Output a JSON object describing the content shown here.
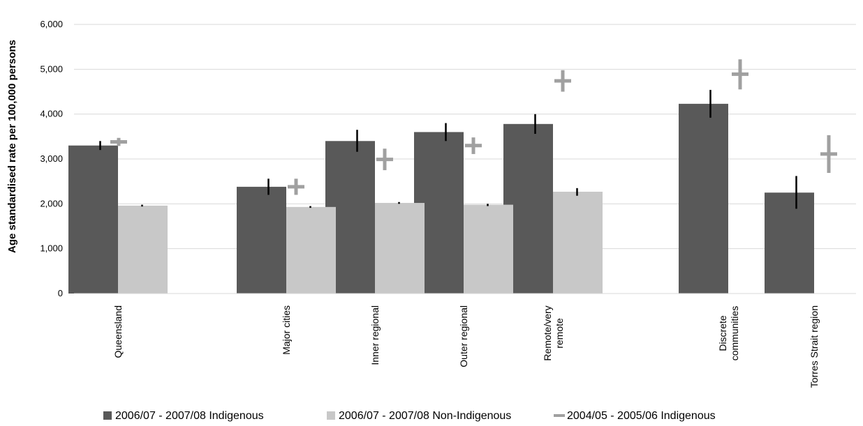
{
  "chart_data": {
    "type": "bar",
    "ylabel": "Age standardised rate per 100,000 persons",
    "ylim": [
      0,
      6000
    ],
    "yticks": [
      "0",
      "1,000",
      "2,000",
      "3,000",
      "4,000",
      "5,000",
      "6,000"
    ],
    "grid": true,
    "legend_position": "bottom",
    "categories": [
      {
        "lines": [
          "Queensland"
        ]
      },
      {
        "lines": [
          "Major cities"
        ]
      },
      {
        "lines": [
          "Inner regional"
        ]
      },
      {
        "lines": [
          "Outer regional"
        ]
      },
      {
        "lines": [
          "Remote/very",
          "remote"
        ]
      },
      {
        "lines": [
          "Discrete",
          "communities"
        ]
      },
      {
        "lines": [
          "Torres Strait region"
        ]
      }
    ],
    "series": [
      {
        "name": "2006/07 - 2007/08 Indigenous",
        "kind": "bar",
        "color": "#595959",
        "values": [
          3300,
          2380,
          3400,
          3600,
          3780,
          4230,
          2250
        ],
        "error_low": [
          3200,
          2200,
          3160,
          3400,
          3560,
          3920,
          1890
        ],
        "error_high": [
          3400,
          2560,
          3650,
          3800,
          4000,
          4540,
          2620
        ]
      },
      {
        "name": "2006/07 - 2007/08 Non-Indigenous",
        "kind": "bar",
        "color": "#c8c8c8",
        "values": [
          1960,
          1930,
          2020,
          1980,
          2270,
          null,
          null
        ],
        "error_low": [
          1940,
          1910,
          2000,
          1950,
          2180,
          null,
          null
        ],
        "error_high": [
          1980,
          1950,
          2040,
          2000,
          2350,
          null,
          null
        ]
      },
      {
        "name": "2004/05 - 2005/06 Indigenous",
        "kind": "marker",
        "color": "#a0a0a0",
        "values": [
          3380,
          2380,
          2990,
          3300,
          4740,
          4890,
          3110
        ],
        "error_low": [
          3290,
          2200,
          2750,
          3110,
          4500,
          4550,
          2690
        ],
        "error_high": [
          3470,
          2560,
          3230,
          3480,
          4980,
          5220,
          3530
        ]
      }
    ]
  }
}
